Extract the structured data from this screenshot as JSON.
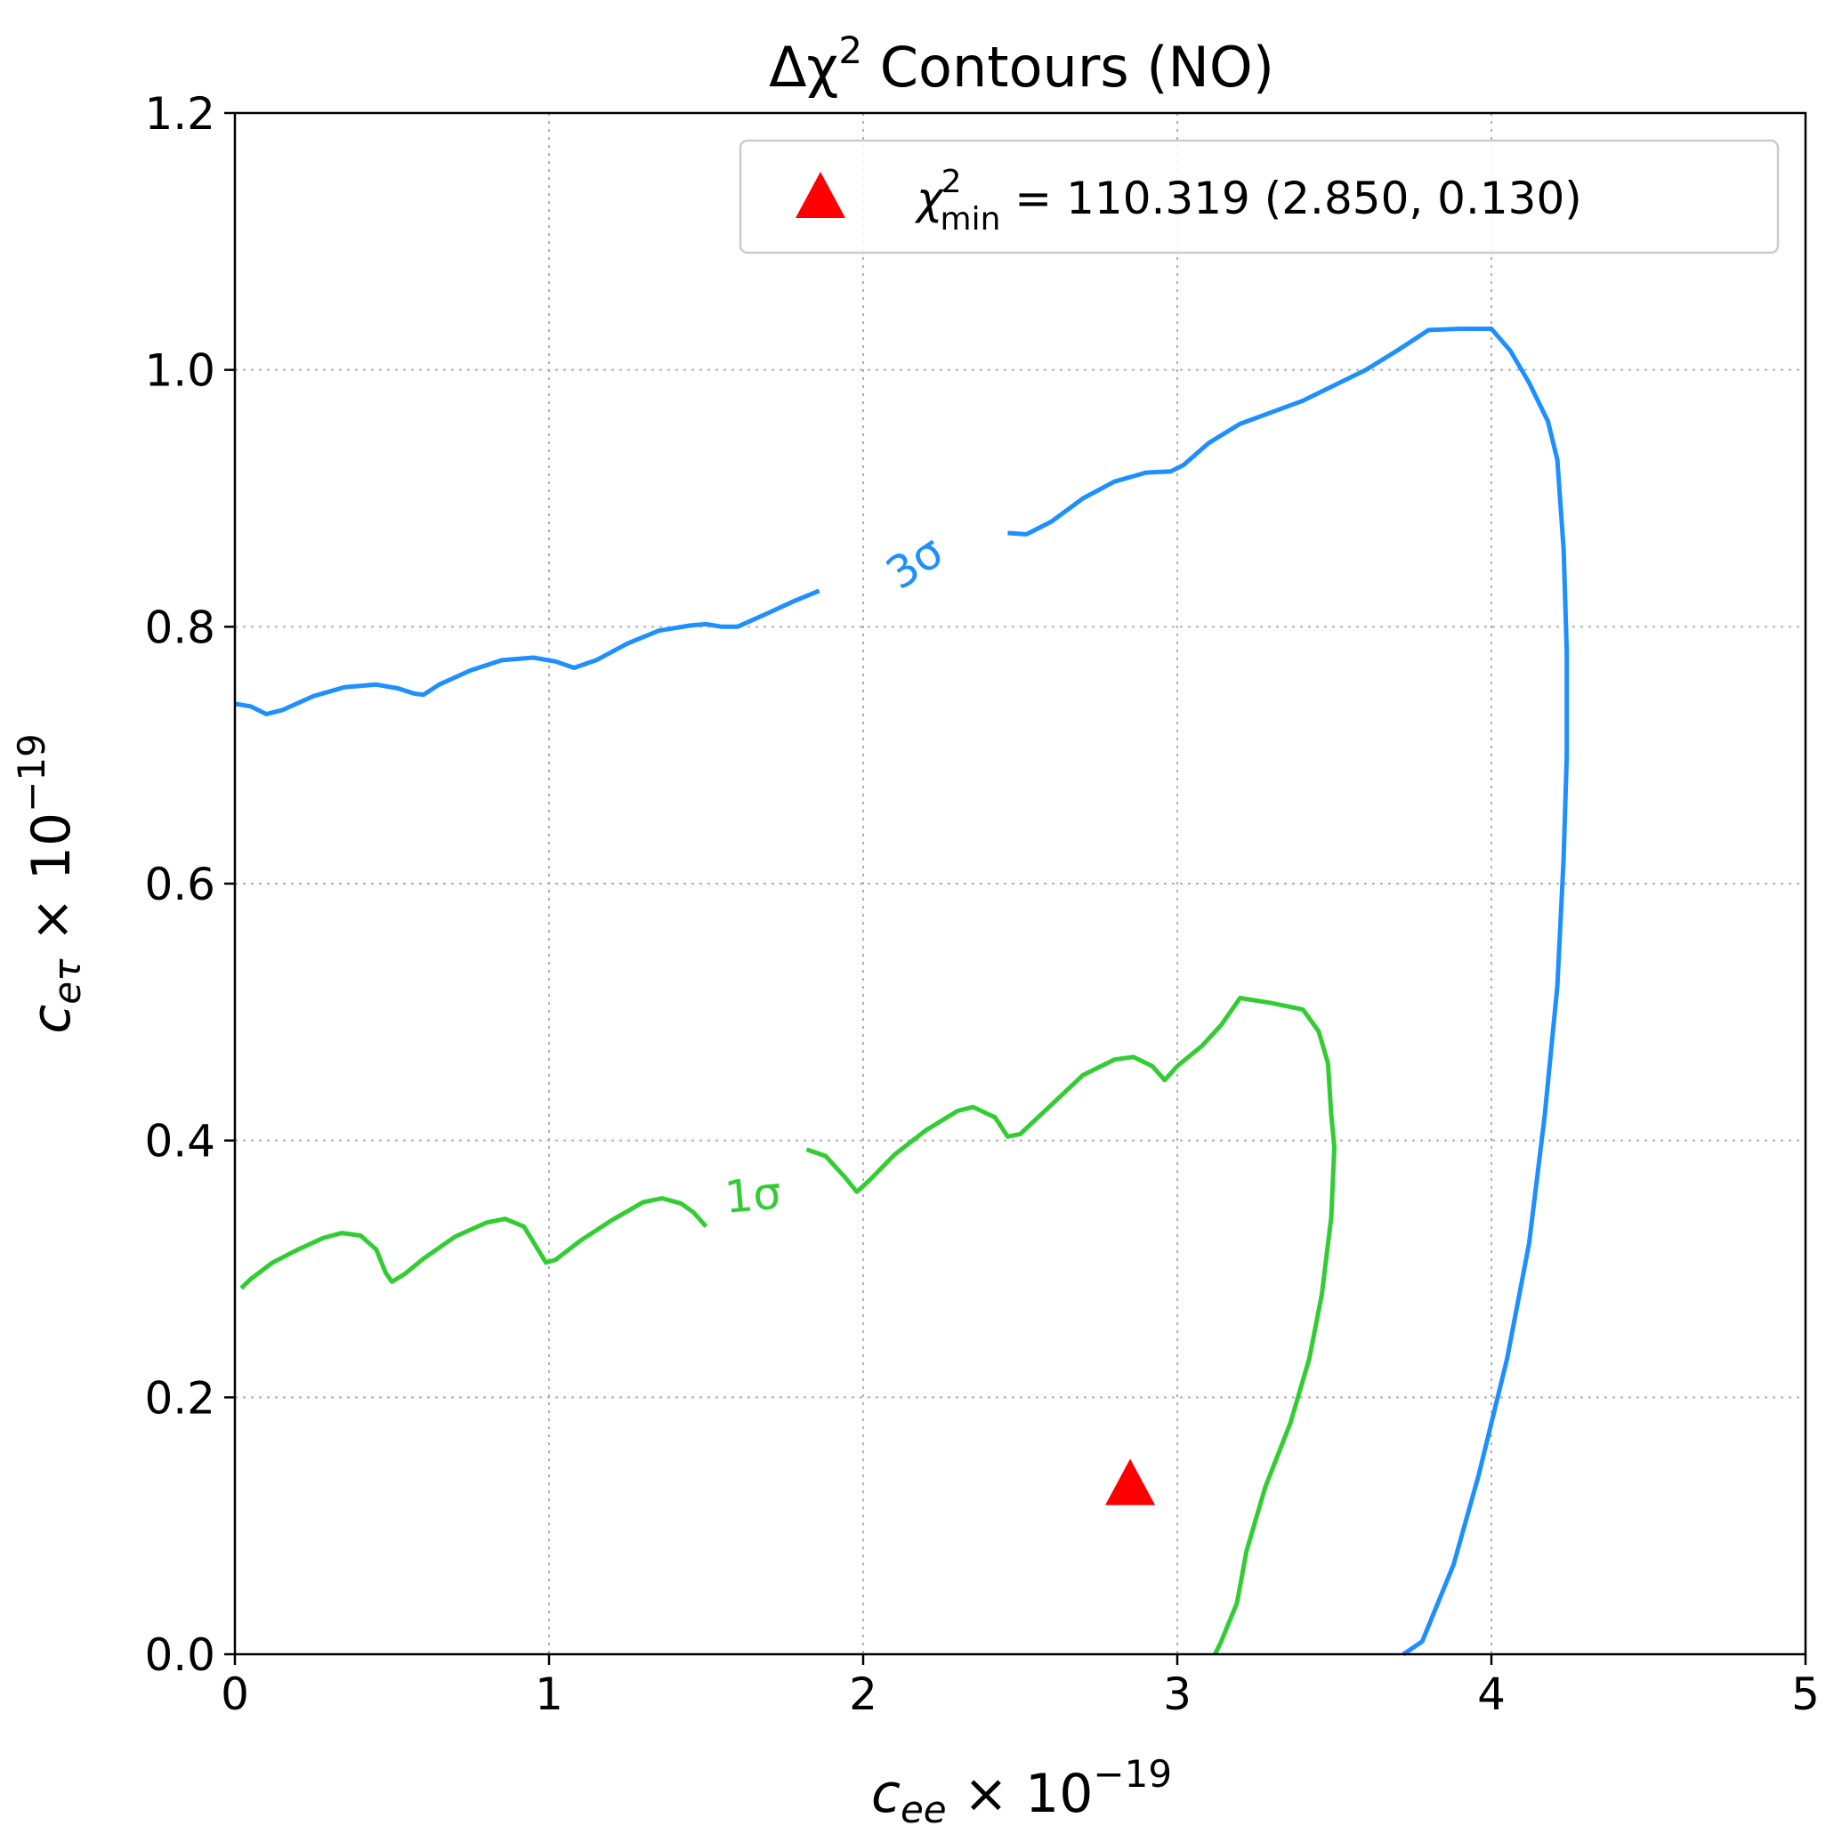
{
  "chart_data": {
    "type": "contour",
    "title": {
      "prefix": "Δχ",
      "sup": "2",
      "suffix": " Contours (NO)"
    },
    "xlabel": {
      "var": "c",
      "sub": "ee",
      "times": " × 10",
      "sup": "−19"
    },
    "ylabel": {
      "var": "c",
      "sub": "eτ",
      "times": " × 10",
      "sup": "−19"
    },
    "xlim": [
      0,
      5
    ],
    "ylim": [
      0,
      1.2
    ],
    "xticks": [
      0,
      1,
      2,
      3,
      4,
      5
    ],
    "xtick_labels": [
      "0",
      "1",
      "2",
      "3",
      "4",
      "5"
    ],
    "yticks": [
      0.0,
      0.2,
      0.4,
      0.6,
      0.8,
      1.0,
      1.2
    ],
    "ytick_labels": [
      "0.0",
      "0.2",
      "0.4",
      "0.6",
      "0.8",
      "1.0",
      "1.2"
    ],
    "grid": true,
    "legend_position": "upper-right",
    "legend": {
      "symbol": "χ",
      "sup": "2",
      "sub": "min",
      "rest": " = 110.319 (2.850, 0.130)"
    },
    "minimum": {
      "x": 2.85,
      "y": 0.13,
      "color": "#ff0000",
      "marker": "triangle"
    },
    "contours": [
      {
        "label": "1σ",
        "color": "#32cd32",
        "label_at": [
          1.65,
          0.355
        ],
        "label_angle": -5,
        "segments": [
          [
            [
              0.02,
              0.285
            ],
            [
              0.05,
              0.292
            ],
            [
              0.12,
              0.305
            ],
            [
              0.2,
              0.315
            ],
            [
              0.28,
              0.324
            ],
            [
              0.34,
              0.328
            ],
            [
              0.4,
              0.326
            ],
            [
              0.45,
              0.315
            ],
            [
              0.48,
              0.297
            ],
            [
              0.5,
              0.29
            ],
            [
              0.54,
              0.296
            ],
            [
              0.6,
              0.308
            ],
            [
              0.7,
              0.325
            ],
            [
              0.8,
              0.336
            ],
            [
              0.86,
              0.339
            ],
            [
              0.92,
              0.333
            ],
            [
              0.96,
              0.317
            ],
            [
              0.99,
              0.305
            ],
            [
              1.02,
              0.307
            ],
            [
              1.1,
              0.322
            ],
            [
              1.2,
              0.338
            ],
            [
              1.3,
              0.352
            ],
            [
              1.36,
              0.355
            ],
            [
              1.42,
              0.351
            ],
            [
              1.46,
              0.344
            ],
            [
              1.5,
              0.333
            ]
          ],
          [
            [
              1.82,
              0.393
            ],
            [
              1.88,
              0.388
            ],
            [
              1.94,
              0.372
            ],
            [
              1.98,
              0.36
            ],
            [
              2.02,
              0.369
            ],
            [
              2.1,
              0.389
            ],
            [
              2.2,
              0.408
            ],
            [
              2.3,
              0.423
            ],
            [
              2.35,
              0.426
            ],
            [
              2.42,
              0.418
            ],
            [
              2.46,
              0.403
            ],
            [
              2.5,
              0.405
            ],
            [
              2.6,
              0.428
            ],
            [
              2.7,
              0.451
            ],
            [
              2.8,
              0.463
            ],
            [
              2.86,
              0.465
            ],
            [
              2.92,
              0.458
            ],
            [
              2.96,
              0.447
            ],
            [
              3.0,
              0.458
            ],
            [
              3.08,
              0.474
            ],
            [
              3.14,
              0.49
            ],
            [
              3.2,
              0.511
            ],
            [
              3.3,
              0.507
            ],
            [
              3.4,
              0.502
            ],
            [
              3.45,
              0.485
            ],
            [
              3.48,
              0.46
            ],
            [
              3.49,
              0.42
            ],
            [
              3.5,
              0.395
            ],
            [
              3.49,
              0.34
            ],
            [
              3.46,
              0.28
            ],
            [
              3.42,
              0.23
            ],
            [
              3.36,
              0.18
            ],
            [
              3.28,
              0.13
            ],
            [
              3.22,
              0.08
            ],
            [
              3.19,
              0.04
            ],
            [
              3.14,
              0.01
            ],
            [
              3.12,
              0.0
            ]
          ]
        ]
      },
      {
        "label": "3σ",
        "color": "#1e8fff",
        "label_at": [
          2.17,
          0.848
        ],
        "label_angle": -34,
        "segments": [
          [
            [
              0.0,
              0.74
            ],
            [
              0.05,
              0.738
            ],
            [
              0.1,
              0.732
            ],
            [
              0.15,
              0.735
            ],
            [
              0.25,
              0.746
            ],
            [
              0.35,
              0.753
            ],
            [
              0.45,
              0.755
            ],
            [
              0.52,
              0.752
            ],
            [
              0.57,
              0.748
            ],
            [
              0.6,
              0.747
            ],
            [
              0.65,
              0.755
            ],
            [
              0.75,
              0.766
            ],
            [
              0.85,
              0.774
            ],
            [
              0.95,
              0.776
            ],
            [
              1.02,
              0.773
            ],
            [
              1.08,
              0.768
            ],
            [
              1.15,
              0.774
            ],
            [
              1.25,
              0.787
            ],
            [
              1.35,
              0.797
            ],
            [
              1.45,
              0.801
            ],
            [
              1.5,
              0.802
            ],
            [
              1.55,
              0.8
            ],
            [
              1.6,
              0.8
            ],
            [
              1.7,
              0.811
            ],
            [
              1.78,
              0.82
            ],
            [
              1.86,
              0.828
            ]
          ],
          [
            [
              2.46,
              0.873
            ],
            [
              2.52,
              0.872
            ],
            [
              2.6,
              0.882
            ],
            [
              2.7,
              0.9
            ],
            [
              2.8,
              0.913
            ],
            [
              2.9,
              0.92
            ],
            [
              2.98,
              0.921
            ],
            [
              3.02,
              0.926
            ],
            [
              3.1,
              0.943
            ],
            [
              3.2,
              0.958
            ],
            [
              3.3,
              0.967
            ],
            [
              3.4,
              0.976
            ],
            [
              3.5,
              0.988
            ],
            [
              3.6,
              1.0
            ],
            [
              3.7,
              1.015
            ],
            [
              3.8,
              1.031
            ],
            [
              3.9,
              1.032
            ],
            [
              4.0,
              1.032
            ],
            [
              4.06,
              1.015
            ],
            [
              4.12,
              0.99
            ],
            [
              4.18,
              0.96
            ],
            [
              4.21,
              0.93
            ],
            [
              4.23,
              0.86
            ],
            [
              4.24,
              0.78
            ],
            [
              4.24,
              0.7
            ],
            [
              4.23,
              0.62
            ],
            [
              4.21,
              0.52
            ],
            [
              4.17,
              0.42
            ],
            [
              4.12,
              0.32
            ],
            [
              4.05,
              0.23
            ],
            [
              3.96,
              0.14
            ],
            [
              3.88,
              0.07
            ],
            [
              3.78,
              0.01
            ],
            [
              3.72,
              0.0
            ]
          ]
        ]
      }
    ]
  }
}
